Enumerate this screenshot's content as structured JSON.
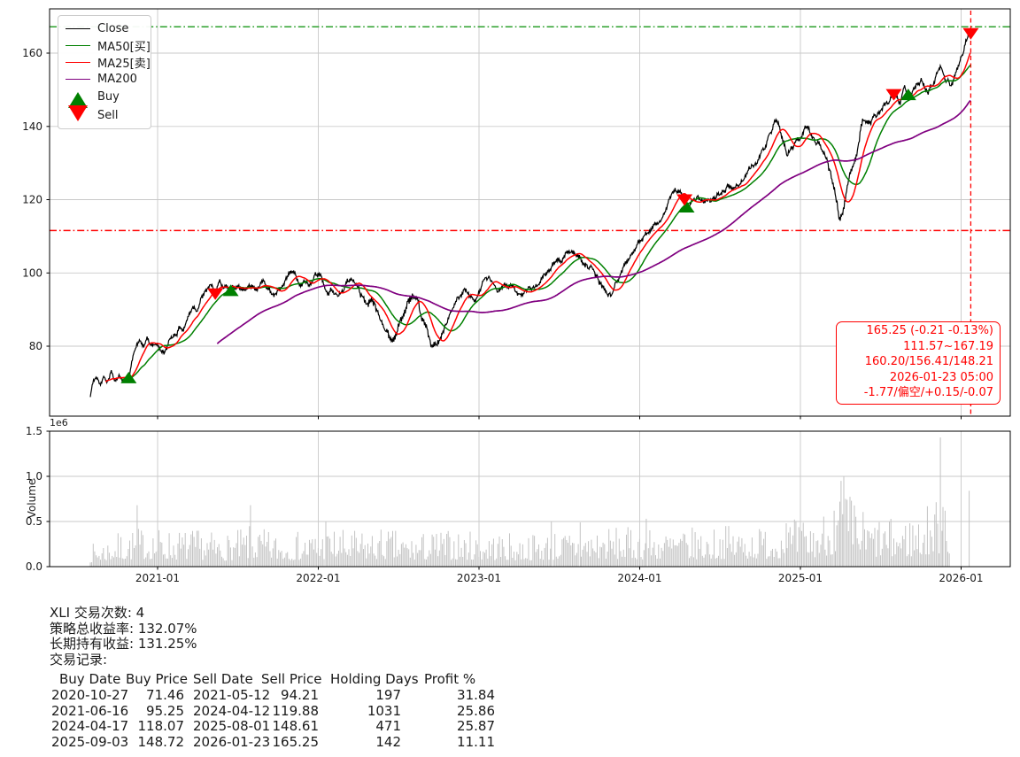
{
  "colors": {
    "close": "#000000",
    "ma50": "#008000",
    "ma25": "#ff0000",
    "ma200": "#800080",
    "buy": "#008000",
    "sell": "#ff0000",
    "upper_band": "#2ca02c",
    "lower_band": "#ff0000",
    "cursor": "#ff0000",
    "grid": "#c9c9c9",
    "spine": "#000000",
    "bars": "#c3c3c3",
    "annotation": "#ff0000",
    "text": "#1a1a1a"
  },
  "legend": {
    "items": [
      {
        "label": "Close",
        "color": "#000000",
        "type": "line"
      },
      {
        "label": "MA50[买]",
        "color": "#008000",
        "type": "line"
      },
      {
        "label": "MA25[卖]",
        "color": "#ff0000",
        "type": "line"
      },
      {
        "label": "MA200",
        "color": "#800080",
        "type": "line"
      },
      {
        "label": "Buy",
        "color": "#008000",
        "type": "triangle-up"
      },
      {
        "label": "Sell",
        "color": "#ff0000",
        "type": "triangle-down"
      }
    ]
  },
  "annotation": {
    "lines": [
      "165.25 (-0.21 -0.13%)",
      "111.57~167.19",
      "160.20/156.41/148.21",
      "2026-01-23 05:00",
      "-1.77/偏空/+0.15/-0.07"
    ]
  },
  "summary": {
    "trades": "XLI 交易次数: 4",
    "strategy_return": "策略总收益率: 132.07%",
    "hold_return": "长期持有收益: 131.25%",
    "records_label": "交易记录:"
  },
  "trade_table": {
    "headers": [
      "Buy Date",
      "Buy Price",
      "Sell Date",
      "Sell Price",
      "Holding Days",
      "Profit %"
    ],
    "rows": [
      [
        "2020-10-27",
        "71.46",
        "2021-05-12",
        "94.21",
        "197",
        "31.84"
      ],
      [
        "2021-06-16",
        "95.25",
        "2024-04-12",
        "119.88",
        "1031",
        "25.86"
      ],
      [
        "2024-04-17",
        "118.07",
        "2025-08-01",
        "148.61",
        "471",
        "25.87"
      ],
      [
        "2025-09-03",
        "148.72",
        "2026-01-23",
        "165.25",
        "142",
        "11.11"
      ]
    ]
  },
  "chart_data": [
    {
      "type": "line",
      "name": "price-panel",
      "xlim": [
        2020.33,
        2026.31
      ],
      "ylim": [
        60.9,
        172.1
      ],
      "x_tick_positions": [
        2021,
        2022,
        2023,
        2024,
        2025,
        2026
      ],
      "x_tick_labels": [
        "2021-01",
        "2022-01",
        "2023-01",
        "2024-01",
        "2025-01",
        "2026-01"
      ],
      "y_ticks": [
        80,
        100,
        120,
        140,
        160
      ],
      "grid": true,
      "hlines": [
        {
          "y": 167.19,
          "color": "#2ca02c",
          "dash": "dashdot"
        },
        {
          "y": 111.57,
          "color": "#ff0000",
          "dash": "dashdot"
        }
      ],
      "vlines": [
        {
          "x": 2026.06,
          "color": "#ff0000",
          "dash": "dashed"
        }
      ],
      "buy_markers": [
        [
          2020.82,
          71.46
        ],
        [
          2021.455,
          95.25
        ],
        [
          2024.292,
          118.07
        ],
        [
          2025.671,
          148.72
        ]
      ],
      "sell_markers": [
        [
          2021.359,
          94.21
        ],
        [
          2024.279,
          119.88
        ],
        [
          2025.581,
          148.61
        ],
        [
          2026.06,
          165.25
        ]
      ],
      "series": [
        {
          "name": "Close",
          "color": "#000000",
          "width": 1.2,
          "anchors": [
            [
              2020.581,
              66.2
            ],
            [
              2020.6,
              70.6
            ],
            [
              2020.62,
              71.3
            ],
            [
              2020.645,
              69.4
            ],
            [
              2020.665,
              72.0
            ],
            [
              2020.69,
              70.8
            ],
            [
              2020.71,
              73.5
            ],
            [
              2020.735,
              70.9
            ],
            [
              2020.76,
              72.0
            ],
            [
              2020.79,
              70.8
            ],
            [
              2020.82,
              71.5
            ],
            [
              2020.845,
              77.0
            ],
            [
              2020.87,
              80.3
            ],
            [
              2020.89,
              81.2
            ],
            [
              2020.91,
              79.8
            ],
            [
              2020.935,
              81.3
            ],
            [
              2020.96,
              80.2
            ],
            [
              2021.0,
              80.3
            ],
            [
              2021.04,
              78.0
            ],
            [
              2021.065,
              80.6
            ],
            [
              2021.09,
              82.6
            ],
            [
              2021.12,
              84.0
            ],
            [
              2021.14,
              85.4
            ],
            [
              2021.16,
              84.6
            ],
            [
              2021.19,
              88.0
            ],
            [
              2021.22,
              91.3
            ],
            [
              2021.245,
              90.4
            ],
            [
              2021.27,
              93.0
            ],
            [
              2021.3,
              94.6
            ],
            [
              2021.325,
              96.6
            ],
            [
              2021.359,
              94.2
            ],
            [
              2021.385,
              96.9
            ],
            [
              2021.41,
              95.0
            ],
            [
              2021.435,
              96.3
            ],
            [
              2021.455,
              95.3
            ],
            [
              2021.49,
              96.9
            ],
            [
              2021.52,
              95.3
            ],
            [
              2021.55,
              96.1
            ],
            [
              2021.58,
              97.3
            ],
            [
              2021.61,
              95.8
            ],
            [
              2021.64,
              96.9
            ],
            [
              2021.67,
              97.5
            ],
            [
              2021.7,
              95.2
            ],
            [
              2021.73,
              93.7
            ],
            [
              2021.76,
              94.9
            ],
            [
              2021.79,
              96.5
            ],
            [
              2021.82,
              99.2
            ],
            [
              2021.845,
              100.0
            ],
            [
              2021.87,
              97.7
            ],
            [
              2021.89,
              95.8
            ],
            [
              2021.92,
              97.6
            ],
            [
              2021.945,
              96.0
            ],
            [
              2021.97,
              99.4
            ],
            [
              2022.0,
              100.3
            ],
            [
              2022.03,
              97.4
            ],
            [
              2022.06,
              94.2
            ],
            [
              2022.09,
              95.9
            ],
            [
              2022.12,
              93.6
            ],
            [
              2022.15,
              95.1
            ],
            [
              2022.18,
              97.4
            ],
            [
              2022.21,
              98.6
            ],
            [
              2022.24,
              96.4
            ],
            [
              2022.27,
              94.0
            ],
            [
              2022.3,
              91.6
            ],
            [
              2022.33,
              93.1
            ],
            [
              2022.36,
              90.0
            ],
            [
              2022.39,
              87.4
            ],
            [
              2022.42,
              85.0
            ],
            [
              2022.44,
              82.4
            ],
            [
              2022.46,
              81.3
            ],
            [
              2022.49,
              84.6
            ],
            [
              2022.52,
              87.6
            ],
            [
              2022.55,
              90.6
            ],
            [
              2022.585,
              93.8
            ],
            [
              2022.61,
              91.0
            ],
            [
              2022.64,
              87.4
            ],
            [
              2022.67,
              84.4
            ],
            [
              2022.7,
              81.5
            ],
            [
              2022.73,
              79.8
            ],
            [
              2022.76,
              81.2
            ],
            [
              2022.79,
              85.2
            ],
            [
              2022.82,
              88.6
            ],
            [
              2022.85,
              91.2
            ],
            [
              2022.88,
              93.9
            ],
            [
              2022.91,
              96.4
            ],
            [
              2022.94,
              94.0
            ],
            [
              2022.97,
              92.3
            ],
            [
              2023.0,
              94.1
            ],
            [
              2023.03,
              97.3
            ],
            [
              2023.06,
              98.6
            ],
            [
              2023.09,
              96.4
            ],
            [
              2023.12,
              94.8
            ],
            [
              2023.15,
              96.8
            ],
            [
              2023.18,
              95.3
            ],
            [
              2023.21,
              96.9
            ],
            [
              2023.24,
              95.2
            ],
            [
              2023.27,
              94.5
            ],
            [
              2023.3,
              95.9
            ],
            [
              2023.33,
              95.1
            ],
            [
              2023.36,
              96.6
            ],
            [
              2023.4,
              98.6
            ],
            [
              2023.43,
              100.1
            ],
            [
              2023.46,
              102.1
            ],
            [
              2023.5,
              103.6
            ],
            [
              2023.54,
              105.3
            ],
            [
              2023.58,
              106.1
            ],
            [
              2023.62,
              104.4
            ],
            [
              2023.67,
              102.4
            ],
            [
              2023.71,
              100.4
            ],
            [
              2023.75,
              97.4
            ],
            [
              2023.79,
              94.9
            ],
            [
              2023.82,
              93.8
            ],
            [
              2023.86,
              97.6
            ],
            [
              2023.9,
              101.6
            ],
            [
              2023.94,
              104.6
            ],
            [
              2023.98,
              107.2
            ],
            [
              2024.02,
              109.2
            ],
            [
              2024.06,
              110.8
            ],
            [
              2024.1,
              113.4
            ],
            [
              2024.13,
              115.2
            ],
            [
              2024.16,
              117.1
            ],
            [
              2024.19,
              120.2
            ],
            [
              2024.22,
              122.9
            ],
            [
              2024.25,
              121.2
            ],
            [
              2024.279,
              119.9
            ],
            [
              2024.292,
              118.1
            ],
            [
              2024.32,
              119.1
            ],
            [
              2024.36,
              120.6
            ],
            [
              2024.4,
              118.6
            ],
            [
              2024.44,
              119.4
            ],
            [
              2024.48,
              120.9
            ],
            [
              2024.52,
              122.2
            ],
            [
              2024.55,
              123.6
            ],
            [
              2024.58,
              123.0
            ],
            [
              2024.62,
              124.2
            ],
            [
              2024.66,
              127.1
            ],
            [
              2024.7,
              129.2
            ],
            [
              2024.75,
              131.3
            ],
            [
              2024.79,
              135.2
            ],
            [
              2024.84,
              140.6
            ],
            [
              2024.87,
              139.0
            ],
            [
              2024.92,
              132.6
            ],
            [
              2024.96,
              134.8
            ],
            [
              2025.0,
              136.6
            ],
            [
              2025.04,
              139.9
            ],
            [
              2025.08,
              137.1
            ],
            [
              2025.12,
              135.4
            ],
            [
              2025.17,
              130.1
            ],
            [
              2025.21,
              124.0
            ],
            [
              2025.24,
              116.9
            ],
            [
              2025.26,
              115.3
            ],
            [
              2025.31,
              127.2
            ],
            [
              2025.35,
              133.6
            ],
            [
              2025.39,
              143.1
            ],
            [
              2025.43,
              140.4
            ],
            [
              2025.47,
              142.6
            ],
            [
              2025.51,
              144.6
            ],
            [
              2025.55,
              147.1
            ],
            [
              2025.581,
              148.6
            ],
            [
              2025.62,
              146.6
            ],
            [
              2025.65,
              150.9
            ],
            [
              2025.671,
              148.7
            ],
            [
              2025.71,
              150.6
            ],
            [
              2025.75,
              153.6
            ],
            [
              2025.79,
              149.6
            ],
            [
              2025.83,
              151.6
            ],
            [
              2025.87,
              156.6
            ],
            [
              2025.9,
              152.6
            ],
            [
              2025.94,
              151.6
            ],
            [
              2025.98,
              155.6
            ],
            [
              2026.01,
              159.5
            ],
            [
              2026.04,
              164.0
            ],
            [
              2026.055,
              166.4
            ],
            [
              2026.06,
              165.25
            ]
          ]
        },
        {
          "name": "MA50[买]",
          "color": "#008000",
          "width": 1.5,
          "window": 50
        },
        {
          "name": "MA25[卖]",
          "color": "#ff0000",
          "width": 1.5,
          "window": 25
        },
        {
          "name": "MA200",
          "color": "#800080",
          "width": 1.7,
          "window": 200
        }
      ]
    },
    {
      "type": "bar",
      "name": "volume-panel",
      "ylabel": "Volume",
      "offset_text": "1e6",
      "y_ticks": [
        0.0,
        0.5,
        1.0,
        1.5
      ],
      "ylim": [
        0,
        1.5
      ],
      "bar_color": "#c3c3c3",
      "range": [
        2020.581,
        2025.93
      ],
      "baseline_monthly": [
        [
          2020.58,
          0.13
        ],
        [
          2020.75,
          0.2
        ],
        [
          2020.92,
          0.24
        ],
        [
          2021.08,
          0.22
        ],
        [
          2021.25,
          0.22
        ],
        [
          2021.42,
          0.19
        ],
        [
          2021.58,
          0.24
        ],
        [
          2021.75,
          0.2
        ],
        [
          2021.92,
          0.21
        ],
        [
          2022.08,
          0.23
        ],
        [
          2022.25,
          0.21
        ],
        [
          2022.42,
          0.23
        ],
        [
          2022.58,
          0.19
        ],
        [
          2022.75,
          0.22
        ],
        [
          2022.92,
          0.21
        ],
        [
          2023.08,
          0.21
        ],
        [
          2023.25,
          0.19
        ],
        [
          2023.42,
          0.21
        ],
        [
          2023.58,
          0.22
        ],
        [
          2023.75,
          0.24
        ],
        [
          2023.92,
          0.23
        ],
        [
          2024.08,
          0.23
        ],
        [
          2024.25,
          0.23
        ],
        [
          2024.42,
          0.23
        ],
        [
          2024.58,
          0.25
        ],
        [
          2024.75,
          0.24
        ],
        [
          2024.92,
          0.28
        ],
        [
          2025.08,
          0.28
        ],
        [
          2025.2,
          0.38
        ],
        [
          2025.3,
          0.45
        ],
        [
          2025.42,
          0.3
        ],
        [
          2025.58,
          0.28
        ],
        [
          2025.75,
          0.33
        ],
        [
          2025.85,
          0.42
        ],
        [
          2025.93,
          0.38
        ]
      ],
      "spikes": [
        [
          2020.873,
          0.68
        ],
        [
          2021.578,
          0.68
        ],
        [
          2022.047,
          0.5
        ],
        [
          2023.45,
          0.5
        ],
        [
          2023.63,
          0.49
        ],
        [
          2024.041,
          0.53
        ],
        [
          2024.912,
          0.48
        ],
        [
          2025.21,
          0.62
        ],
        [
          2025.245,
          0.72
        ],
        [
          2025.253,
          0.95
        ],
        [
          2025.27,
          1.0
        ],
        [
          2025.871,
          1.43
        ],
        [
          2025.887,
          0.66
        ],
        [
          2025.9,
          0.62
        ]
      ],
      "last_bar": [
        2026.05,
        0.84
      ]
    }
  ]
}
